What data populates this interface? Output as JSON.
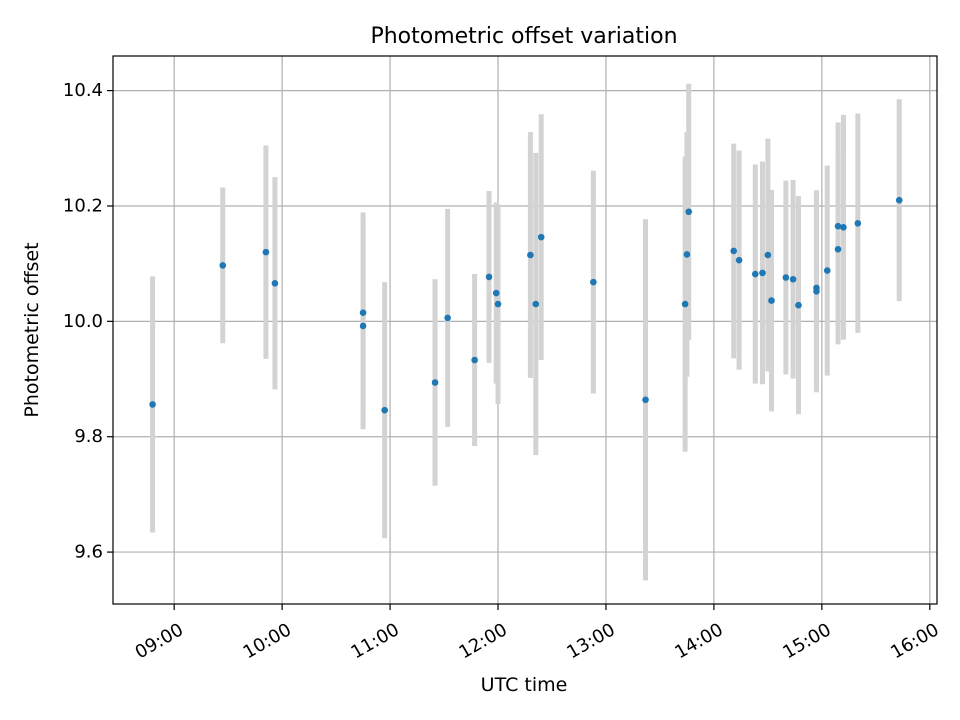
{
  "chart_data": {
    "type": "scatter",
    "title": "Photometric offset variation",
    "xlabel": "UTC time",
    "ylabel": "Photometric offset",
    "x_type": "time",
    "xlim": [
      "08:26",
      "16:04"
    ],
    "ylim": [
      9.51,
      10.46
    ],
    "x_ticks": [
      "09:00",
      "10:00",
      "11:00",
      "12:00",
      "13:00",
      "14:00",
      "15:00",
      "16:00"
    ],
    "y_ticks": [
      9.6,
      9.8,
      10.0,
      10.2,
      10.4
    ],
    "grid": true,
    "legend": "none",
    "colors": {
      "marker": "#1f77b4",
      "errorbar": "#d3d3d3",
      "grid": "#b0b0b0"
    },
    "points": [
      {
        "x": "08:48",
        "y": 9.856,
        "err": 0.222
      },
      {
        "x": "09:27",
        "y": 10.097,
        "err": 0.135
      },
      {
        "x": "09:51",
        "y": 10.12,
        "err": 0.185
      },
      {
        "x": "09:56",
        "y": 10.066,
        "err": 0.184
      },
      {
        "x": "10:45",
        "y": 10.015,
        "err": 0.174
      },
      {
        "x": "10:45",
        "y": 9.992,
        "err": 0.179
      },
      {
        "x": "10:57",
        "y": 9.846,
        "err": 0.222
      },
      {
        "x": "11:25",
        "y": 9.894,
        "err": 0.179
      },
      {
        "x": "11:32",
        "y": 10.006,
        "err": 0.189
      },
      {
        "x": "11:47",
        "y": 9.933,
        "err": 0.149
      },
      {
        "x": "11:55",
        "y": 10.077,
        "err": 0.149
      },
      {
        "x": "11:59",
        "y": 10.049,
        "err": 0.157
      },
      {
        "x": "12:00",
        "y": 10.03,
        "err": 0.173
      },
      {
        "x": "12:18",
        "y": 10.115,
        "err": 0.213
      },
      {
        "x": "12:21",
        "y": 10.03,
        "err": 0.262
      },
      {
        "x": "12:24",
        "y": 10.146,
        "err": 0.213
      },
      {
        "x": "12:53",
        "y": 10.068,
        "err": 0.193
      },
      {
        "x": "13:22",
        "y": 9.864,
        "err": 0.313
      },
      {
        "x": "13:44",
        "y": 10.03,
        "err": 0.256
      },
      {
        "x": "13:45",
        "y": 10.116,
        "err": 0.212
      },
      {
        "x": "13:46",
        "y": 10.19,
        "err": 0.222
      },
      {
        "x": "14:11",
        "y": 10.122,
        "err": 0.186
      },
      {
        "x": "14:14",
        "y": 10.106,
        "err": 0.19
      },
      {
        "x": "14:23",
        "y": 10.082,
        "err": 0.19
      },
      {
        "x": "14:27",
        "y": 10.084,
        "err": 0.193
      },
      {
        "x": "14:30",
        "y": 10.115,
        "err": 0.202
      },
      {
        "x": "14:32",
        "y": 10.036,
        "err": 0.192
      },
      {
        "x": "14:40",
        "y": 10.076,
        "err": 0.168
      },
      {
        "x": "14:44",
        "y": 10.073,
        "err": 0.172
      },
      {
        "x": "14:47",
        "y": 10.028,
        "err": 0.189
      },
      {
        "x": "14:57",
        "y": 10.058,
        "err": 0.169
      },
      {
        "x": "14:57",
        "y": 10.052,
        "err": 0.175
      },
      {
        "x": "15:03",
        "y": 10.088,
        "err": 0.182
      },
      {
        "x": "15:09",
        "y": 10.125,
        "err": 0.165
      },
      {
        "x": "15:09",
        "y": 10.165,
        "err": 0.18
      },
      {
        "x": "15:12",
        "y": 10.163,
        "err": 0.195
      },
      {
        "x": "15:20",
        "y": 10.17,
        "err": 0.19
      },
      {
        "x": "15:43",
        "y": 10.21,
        "err": 0.175
      }
    ]
  }
}
